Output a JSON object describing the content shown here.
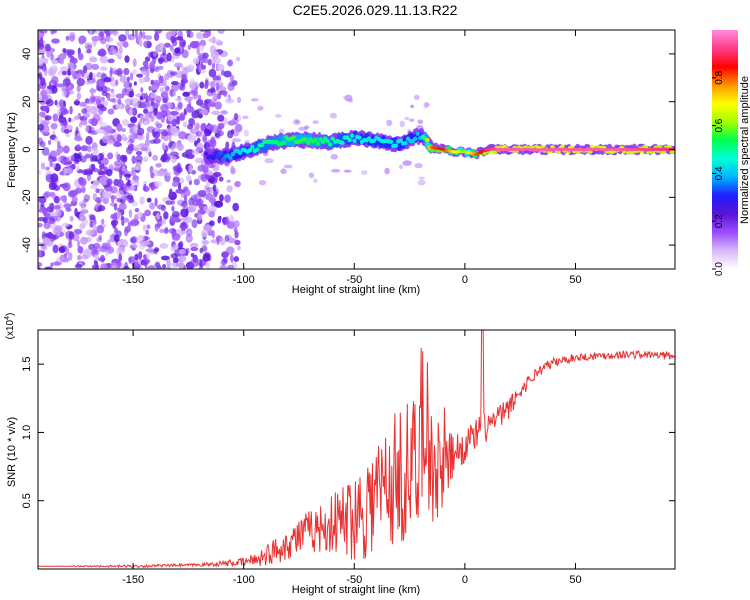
{
  "title": "C2E5.2026.029.11.13.R22",
  "chart_data": [
    {
      "type": "heatmap",
      "title": "C2E5.2026.029.11.13.R22",
      "xlabel": "Height of straight line (km)",
      "ylabel": "Frequency (Hz)",
      "xlim": [
        -193,
        95
      ],
      "ylim": [
        -50,
        50
      ],
      "xticks": [
        -150,
        -100,
        -50,
        0,
        50
      ],
      "yticks": [
        -40,
        -20,
        0,
        20,
        40
      ],
      "colorbar": {
        "label": "Normalized spectral amplitude",
        "range": [
          0,
          1
        ],
        "ticks": [
          "0.0",
          "0.2",
          "0.4",
          "0.6",
          "0.8"
        ],
        "colormap": [
          "#ffffff",
          "#d8b8f8",
          "#9b4dff",
          "#5a14d8",
          "#1e1eff",
          "#00b4ff",
          "#00ffd8",
          "#00ff50",
          "#a0ff00",
          "#ffff00",
          "#ff9600",
          "#ff0000",
          "#ff3c8c",
          "#ff8cdc"
        ]
      },
      "ridge": {
        "x": [
          -117,
          -110,
          -100,
          -90,
          -80,
          -70,
          -60,
          -50,
          -40,
          -30,
          -20,
          -15,
          -10,
          -5,
          0,
          5,
          10,
          15,
          30,
          50,
          70,
          95
        ],
        "y": [
          -3,
          -3,
          -1,
          2,
          4,
          4,
          3,
          5,
          4,
          2,
          6,
          1,
          0,
          -1,
          -1,
          -2,
          0,
          0,
          0,
          0,
          0,
          0
        ],
        "amplitude": [
          0.25,
          0.35,
          0.45,
          0.5,
          0.55,
          0.55,
          0.5,
          0.45,
          0.45,
          0.45,
          0.4,
          0.8,
          0.85,
          0.7,
          0.6,
          0.8,
          0.9,
          0.95,
          0.95,
          0.95,
          0.95,
          0.9
        ]
      },
      "noise_region_x": [
        -193,
        -110
      ]
    },
    {
      "type": "line",
      "xlabel": "Height of straight line (km)",
      "ylabel": "SNR (10 * v/v)",
      "yscale_label": "(x10",
      "yscale_exp": "4",
      "xlim": [
        -193,
        95
      ],
      "ylim": [
        0,
        1.75
      ],
      "xticks": [
        -150,
        -100,
        -50,
        0,
        50
      ],
      "yticks": [
        0.5,
        1.0,
        1.5
      ],
      "ytick_labels": [
        "0.5",
        "1.0",
        "1.5"
      ],
      "series": [
        {
          "name": "SNR",
          "color": "#e83232",
          "x": [
            -193,
            -150,
            -120,
            -100,
            -95,
            -90,
            -85,
            -80,
            -75,
            -70,
            -65,
            -60,
            -55,
            -50,
            -45,
            -40,
            -35,
            -30,
            -25,
            -20,
            -15,
            -10,
            -5,
            0,
            5,
            10,
            15,
            20,
            25,
            30,
            35,
            40,
            45,
            50,
            60,
            70,
            80,
            95
          ],
          "values": [
            0.02,
            0.02,
            0.03,
            0.05,
            0.07,
            0.1,
            0.14,
            0.19,
            0.24,
            0.28,
            0.3,
            0.33,
            0.36,
            0.4,
            0.46,
            0.55,
            0.62,
            0.68,
            0.72,
            0.75,
            0.72,
            0.72,
            0.85,
            0.9,
            0.98,
            1.05,
            1.1,
            1.18,
            1.3,
            1.4,
            1.47,
            1.51,
            1.53,
            1.55,
            1.56,
            1.57,
            1.57,
            1.56
          ],
          "noise": [
            0.0,
            0.01,
            0.01,
            0.03,
            0.05,
            0.08,
            0.1,
            0.12,
            0.14,
            0.16,
            0.18,
            0.22,
            0.28,
            0.34,
            0.4,
            0.45,
            0.5,
            0.52,
            0.55,
            0.55,
            0.45,
            0.3,
            0.15,
            0.12,
            0.12,
            0.12,
            0.1,
            0.08,
            0.06,
            0.05,
            0.04,
            0.04,
            0.03,
            0.03,
            0.03,
            0.03,
            0.03,
            0.03
          ]
        }
      ]
    }
  ]
}
